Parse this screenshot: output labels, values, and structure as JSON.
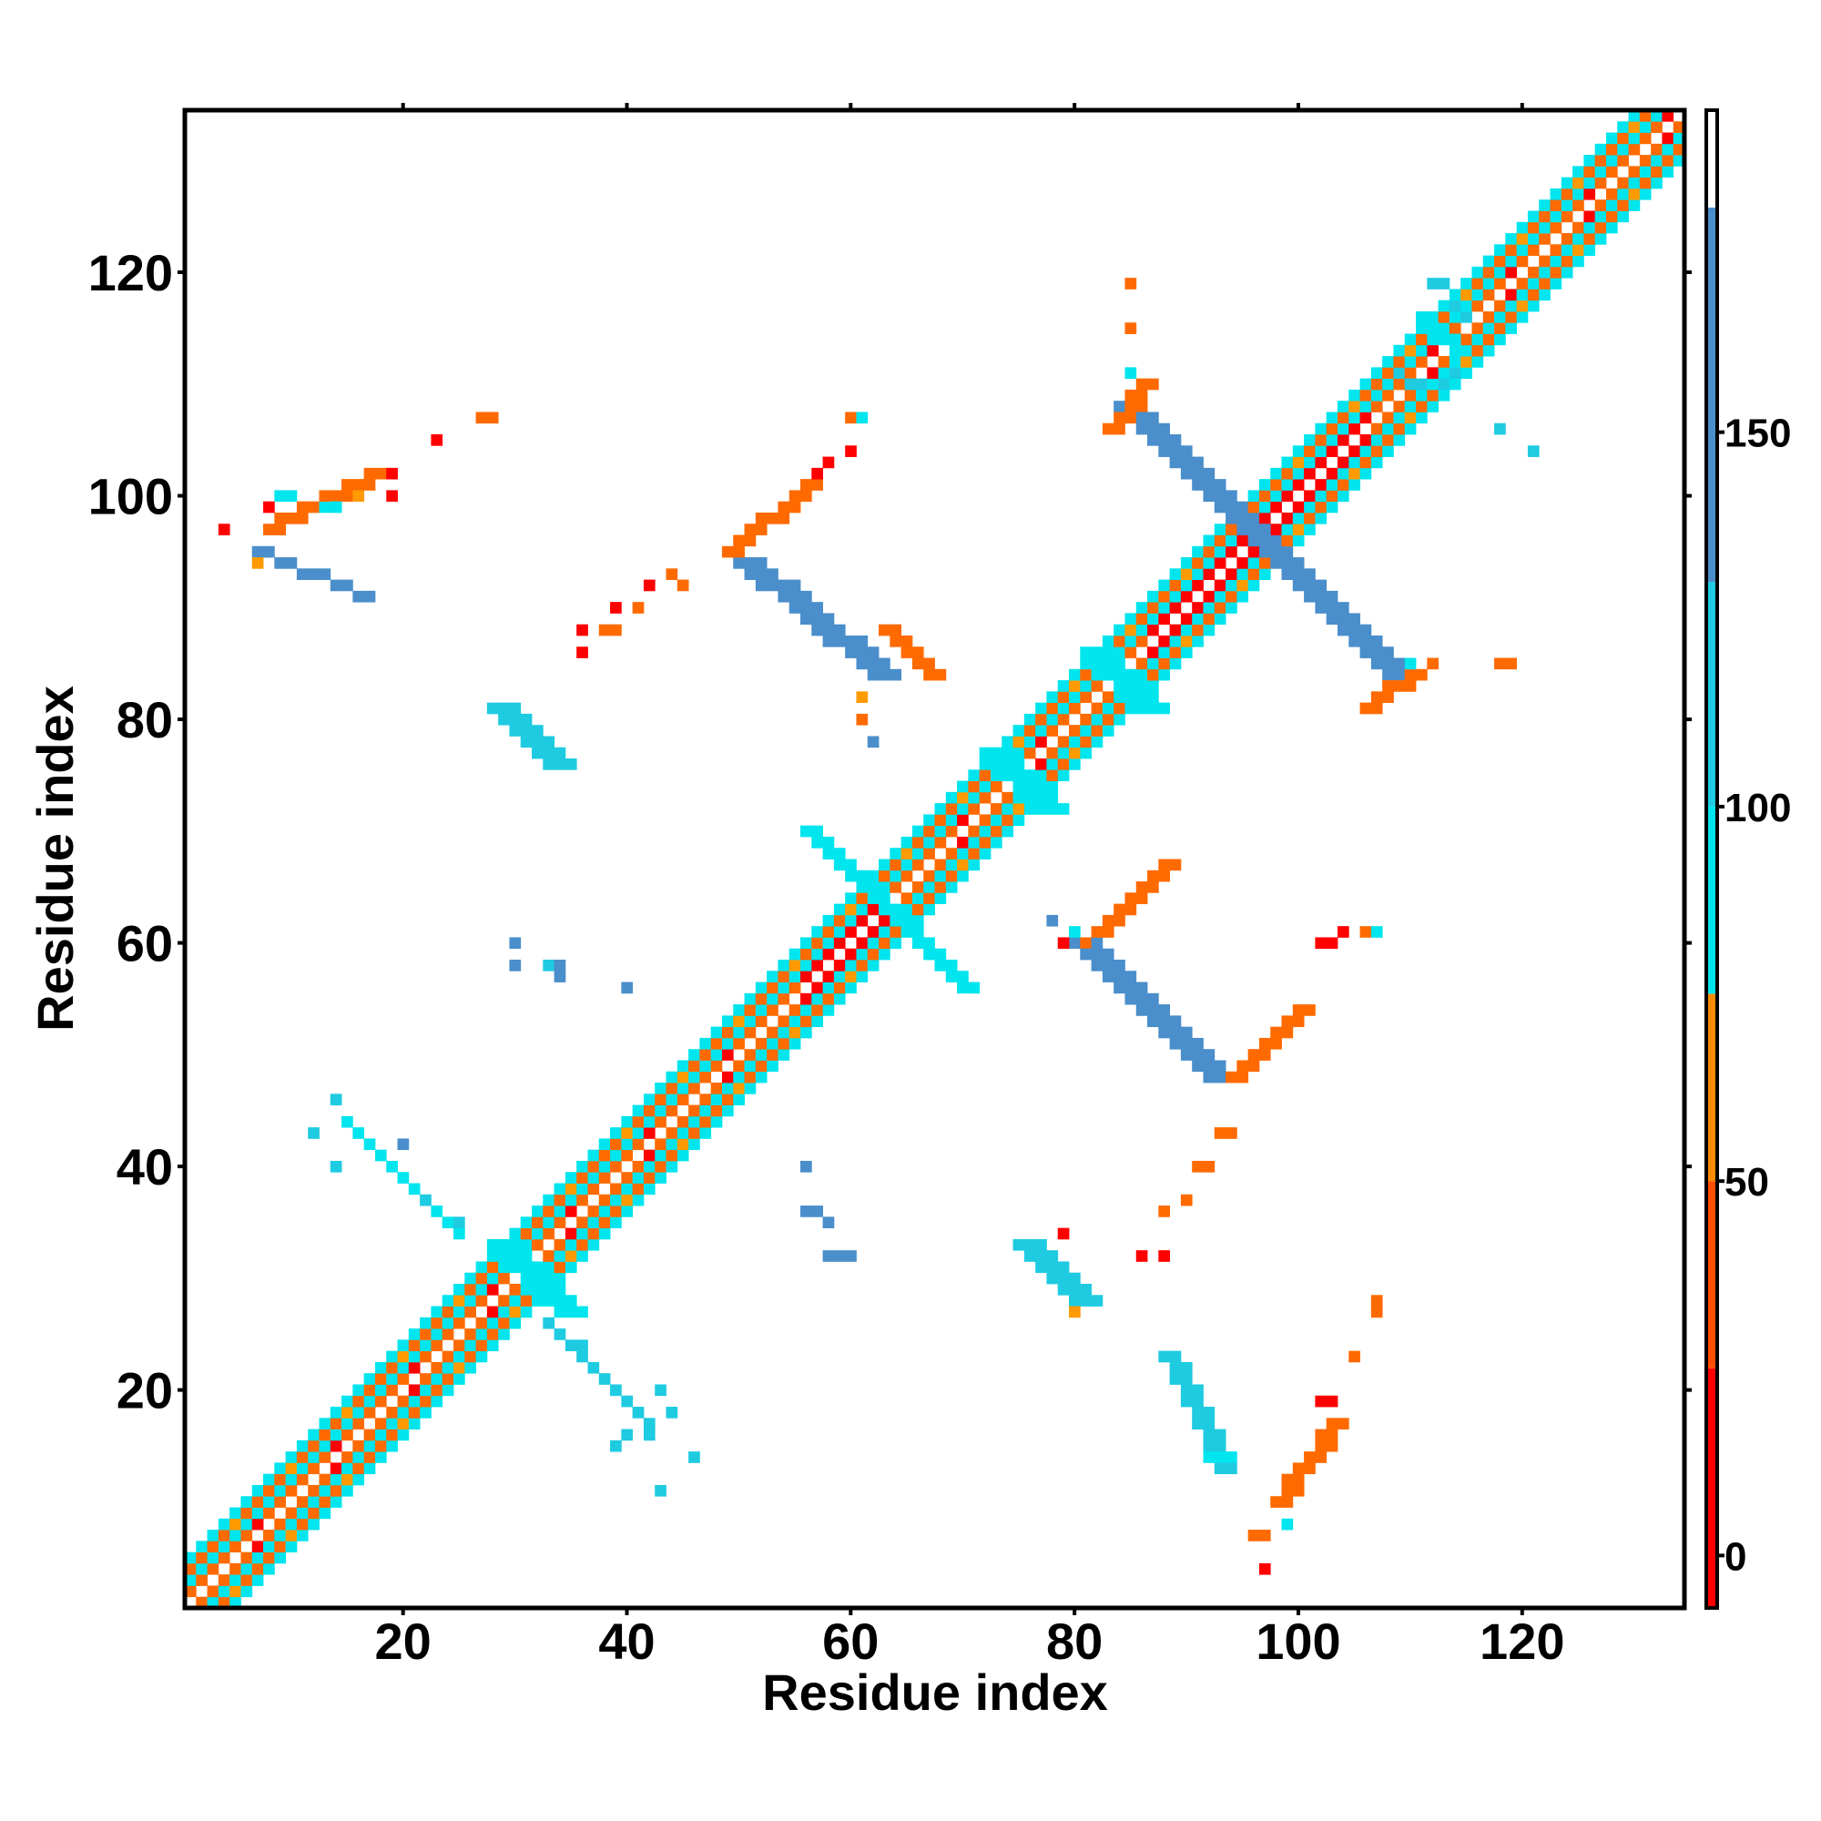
{
  "chart_data": {
    "type": "heatmap",
    "xlabel": "Residue index",
    "ylabel": "Residue index",
    "xlim": [
      1,
      134
    ],
    "ylim": [
      1,
      134
    ],
    "x_ticks": [
      20,
      40,
      60,
      80,
      100,
      120
    ],
    "y_ticks": [
      20,
      40,
      60,
      80,
      100,
      120
    ],
    "colorbar": {
      "ticks": [
        0,
        50,
        100,
        150
      ],
      "range": [
        -7,
        193
      ],
      "bands": [
        {
          "from": -7,
          "to": 25,
          "color": "#ff0000"
        },
        {
          "from": 25,
          "to": 50,
          "color": "#ff4d00"
        },
        {
          "from": 50,
          "to": 75,
          "color": "#ff8c00"
        },
        {
          "from": 75,
          "to": 100,
          "color": "#00e5ee"
        },
        {
          "from": 100,
          "to": 130,
          "color": "#1ecbe1"
        },
        {
          "from": 130,
          "to": 180,
          "color": "#4a8ecb"
        },
        {
          "from": 180,
          "to": 193,
          "color": "#ffffff"
        }
      ]
    },
    "palette": {
      "r": "#ff0000",
      "o": "#ff6a00",
      "a": "#ff9a00",
      "c": "#00e5ee",
      "t": "#1ecbe1",
      "b": "#4a8ecb"
    },
    "diagonal_pattern": {
      "0": "w",
      "1": "o",
      "-1": "o",
      "2": "c",
      "-2": "c",
      "3": "o",
      "-3": "o",
      "4": "c",
      "-4": "c"
    },
    "strong_diagonal_ranges": [
      [
        57,
        62
      ],
      [
        87,
        106
      ]
    ],
    "blocks": [
      {
        "x": [
          84,
          96
        ],
        "y": [
          108,
          96
        ],
        "w": 3,
        "c": "b"
      },
      {
        "x": [
          96,
          108
        ],
        "y": [
          96,
          84
        ],
        "w": 3,
        "c": "b"
      },
      {
        "x": [
          50,
          62
        ],
        "y": [
          94,
          84
        ],
        "w": 3,
        "c": "b"
      },
      {
        "x": [
          80,
          92
        ],
        "y": [
          60,
          48
        ],
        "w": 3,
        "c": "b"
      },
      {
        "x": [
          28,
          33
        ],
        "y": [
          81,
          76
        ],
        "w": 3,
        "c": "t"
      },
      {
        "x": [
          75,
          80
        ],
        "y": [
          33,
          28
        ],
        "w": 3,
        "c": "t"
      },
      {
        "x": [
          56,
          66
        ],
        "y": [
          70,
          60
        ],
        "w": 2,
        "c": "c"
      },
      {
        "x": [
          60,
          70
        ],
        "y": [
          66,
          56
        ],
        "w": 2,
        "c": "c"
      },
      {
        "x": [
          28,
          34
        ],
        "y": [
          33,
          27
        ],
        "w": 3,
        "c": "c"
      },
      {
        "x": [
          81,
          86
        ],
        "y": [
          86,
          81
        ],
        "w": 3,
        "c": "c"
      },
      {
        "x": [
          72,
          77
        ],
        "y": [
          77,
          72
        ],
        "w": 3,
        "c": "c"
      },
      {
        "x": [
          111,
          114
        ],
        "y": [
          116,
          113
        ],
        "w": 2,
        "c": "c"
      },
      {
        "x": [
          7,
          17
        ],
        "y": [
          95,
          91
        ],
        "w": 1,
        "c": "b"
      },
      {
        "x": [
          33,
          42
        ],
        "y": [
          26,
          17
        ],
        "w": 1,
        "c": "t"
      },
      {
        "x": [
          15,
          25
        ],
        "y": [
          44,
          34
        ],
        "w": 1,
        "c": "c"
      },
      {
        "x": [
          88,
          93
        ],
        "y": [
          23,
          13
        ],
        "w": 2,
        "c": "t"
      },
      {
        "x": [
          98,
          103
        ],
        "y": [
          10,
          17
        ],
        "w": 2,
        "c": "o"
      },
      {
        "x": [
          8,
          17
        ],
        "y": [
          97,
          102
        ],
        "w": 2,
        "c": "o"
      },
      {
        "x": [
          49,
          56
        ],
        "y": [
          95,
          101
        ],
        "w": 2,
        "c": "o"
      },
      {
        "x": [
          82,
          88
        ],
        "y": [
          61,
          67
        ],
        "w": 2,
        "c": "o"
      },
      {
        "x": [
          94,
          100
        ],
        "y": [
          48,
          54
        ],
        "w": 2,
        "c": "o"
      },
      {
        "x": [
          67,
          63
        ],
        "y": [
          84,
          88
        ],
        "w": 2,
        "c": "o"
      },
      {
        "x": [
          83,
          86
        ],
        "y": [
          106,
          110
        ],
        "w": 2,
        "c": "o"
      },
      {
        "x": [
          106,
          110
        ],
        "y": [
          81,
          84
        ],
        "w": 2,
        "c": "o"
      }
    ],
    "cells": [
      [
        4,
        97,
        "r"
      ],
      [
        7,
        94,
        "a"
      ],
      [
        8,
        99,
        "r"
      ],
      [
        9,
        100,
        "c"
      ],
      [
        10,
        100,
        "c"
      ],
      [
        13,
        99,
        "c"
      ],
      [
        14,
        99,
        "c"
      ],
      [
        16,
        100,
        "a"
      ],
      [
        19,
        100,
        "r"
      ],
      [
        19,
        102,
        "r"
      ],
      [
        23,
        105,
        "r"
      ],
      [
        27,
        107,
        "o"
      ],
      [
        28,
        107,
        "o"
      ],
      [
        36,
        88,
        "r"
      ],
      [
        36,
        86,
        "r"
      ],
      [
        38,
        88,
        "o"
      ],
      [
        39,
        88,
        "o"
      ],
      [
        39,
        90,
        "r"
      ],
      [
        41,
        90,
        "o"
      ],
      [
        42,
        92,
        "r"
      ],
      [
        44,
        93,
        "o"
      ],
      [
        45,
        92,
        "o"
      ],
      [
        30,
        60,
        "b"
      ],
      [
        30,
        58,
        "b"
      ],
      [
        33,
        58,
        "t"
      ],
      [
        34,
        57,
        "b"
      ],
      [
        34,
        58,
        "b"
      ],
      [
        40,
        56,
        "b"
      ],
      [
        56,
        40,
        "b"
      ],
      [
        56,
        36,
        "b"
      ],
      [
        57,
        36,
        "b"
      ],
      [
        58,
        35,
        "b"
      ],
      [
        58,
        32,
        "b"
      ],
      [
        59,
        32,
        "b"
      ],
      [
        60,
        32,
        "b"
      ],
      [
        61,
        82,
        "a"
      ],
      [
        61,
        80,
        "o"
      ],
      [
        62,
        78,
        "b"
      ],
      [
        60,
        107,
        "o"
      ],
      [
        61,
        107,
        "c"
      ],
      [
        60,
        104,
        "r"
      ],
      [
        58,
        103,
        "r"
      ],
      [
        57,
        102,
        "r"
      ],
      [
        85,
        119,
        "o"
      ],
      [
        85,
        115,
        "o"
      ],
      [
        85,
        111,
        "c"
      ],
      [
        112,
        119,
        "t"
      ],
      [
        113,
        119,
        "t"
      ],
      [
        114,
        117,
        "t"
      ],
      [
        115,
        116,
        "t"
      ],
      [
        118,
        106,
        "t"
      ],
      [
        121,
        104,
        "t"
      ],
      [
        118,
        85,
        "o"
      ],
      [
        119,
        85,
        "o"
      ],
      [
        112,
        85,
        "o"
      ],
      [
        110,
        85,
        "c"
      ],
      [
        78,
        62,
        "b"
      ],
      [
        80,
        61,
        "c"
      ],
      [
        81,
        60,
        "o"
      ],
      [
        79,
        60,
        "r"
      ],
      [
        102,
        60,
        "r"
      ],
      [
        103,
        60,
        "r"
      ],
      [
        104,
        61,
        "r"
      ],
      [
        106,
        61,
        "o"
      ],
      [
        107,
        61,
        "c"
      ],
      [
        79,
        34,
        "r"
      ],
      [
        80,
        27,
        "a"
      ],
      [
        88,
        32,
        "r"
      ],
      [
        86,
        32,
        "r"
      ],
      [
        88,
        36,
        "o"
      ],
      [
        90,
        37,
        "o"
      ],
      [
        91,
        40,
        "o"
      ],
      [
        92,
        40,
        "o"
      ],
      [
        93,
        43,
        "o"
      ],
      [
        94,
        43,
        "o"
      ],
      [
        97,
        4,
        "r"
      ],
      [
        96,
        7,
        "o"
      ],
      [
        97,
        7,
        "o"
      ],
      [
        99,
        8,
        "c"
      ],
      [
        100,
        11,
        "o"
      ],
      [
        102,
        19,
        "r"
      ],
      [
        103,
        19,
        "r"
      ],
      [
        105,
        23,
        "o"
      ],
      [
        107,
        27,
        "o"
      ],
      [
        107,
        28,
        "o"
      ],
      [
        113,
        110,
        "t"
      ],
      [
        114,
        111,
        "t"
      ],
      [
        109,
        111,
        "t"
      ],
      [
        110,
        110,
        "t"
      ],
      [
        111,
        110,
        "t"
      ],
      [
        92,
        14,
        "c"
      ],
      [
        93,
        14,
        "c"
      ],
      [
        94,
        14,
        "c"
      ],
      [
        44,
        18,
        "t"
      ],
      [
        43,
        20,
        "t"
      ],
      [
        42,
        16,
        "t"
      ],
      [
        46,
        14,
        "t"
      ],
      [
        43,
        11,
        "t"
      ],
      [
        39,
        15,
        "t"
      ],
      [
        40,
        16,
        "t"
      ],
      [
        33,
        26,
        "t"
      ],
      [
        36,
        24,
        "t"
      ],
      [
        12,
        43,
        "t"
      ],
      [
        14,
        46,
        "t"
      ],
      [
        14,
        40,
        "t"
      ],
      [
        20,
        42,
        "b"
      ],
      [
        25,
        35,
        "t"
      ],
      [
        22,
        37,
        "t"
      ]
    ]
  }
}
